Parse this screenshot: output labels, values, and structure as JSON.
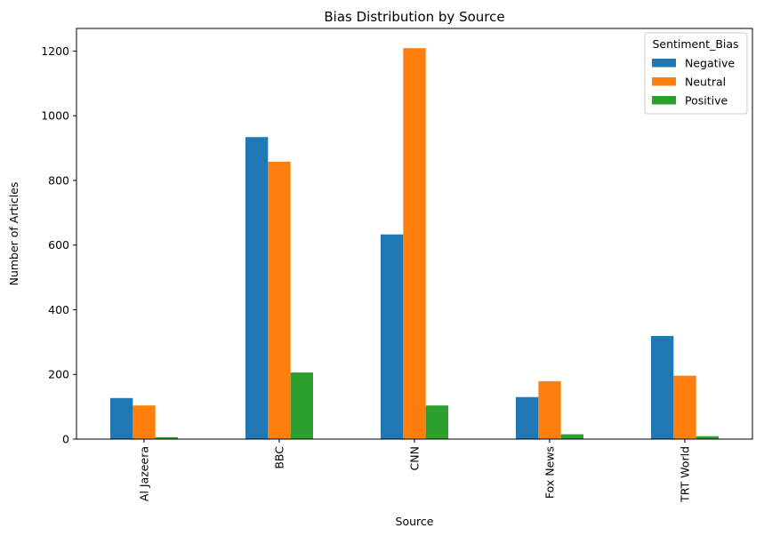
{
  "chart_data": {
    "type": "bar",
    "title": "Bias Distribution by Source",
    "xlabel": "Source",
    "ylabel": "Number of Articles",
    "categories": [
      "Al Jazeera",
      "BBC",
      "CNN",
      "Fox News",
      "TRT World"
    ],
    "series": [
      {
        "name": "Negative",
        "color": "#1f77b4",
        "values": [
          127,
          934,
          633,
          130,
          319
        ]
      },
      {
        "name": "Neutral",
        "color": "#ff7f0e",
        "values": [
          104,
          858,
          1209,
          179,
          196
        ]
      },
      {
        "name": "Positive",
        "color": "#2ca02c",
        "values": [
          6,
          206,
          104,
          15,
          9
        ]
      }
    ],
    "ylim": [
      0,
      1270
    ],
    "yticks": [
      0,
      200,
      400,
      600,
      800,
      1000,
      1200
    ],
    "legend": {
      "title": "Sentiment_Bias",
      "placement": "top-right"
    },
    "grid": false
  }
}
